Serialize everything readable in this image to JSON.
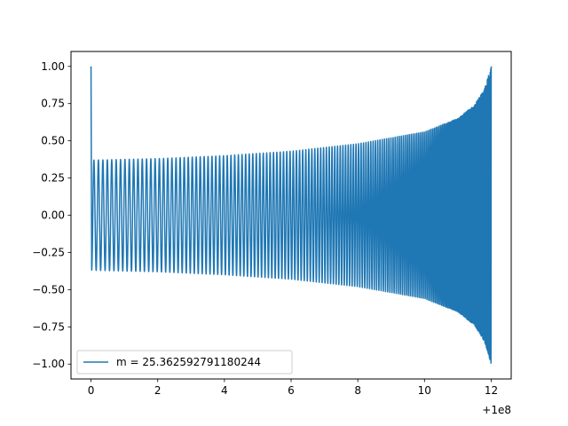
{
  "chart_data": {
    "type": "line",
    "title": "",
    "xlabel": "",
    "ylabel": "",
    "x_offset_label": "+1e8",
    "xlim": [
      -0.6,
      12.6
    ],
    "ylim": [
      -1.1,
      1.1
    ],
    "x_ticks": [
      0,
      2,
      4,
      6,
      8,
      10,
      12
    ],
    "x_tick_labels": [
      "0",
      "2",
      "4",
      "6",
      "8",
      "10",
      "12"
    ],
    "y_ticks": [
      -1.0,
      -0.75,
      -0.5,
      -0.25,
      0.0,
      0.25,
      0.5,
      0.75,
      1.0
    ],
    "y_tick_labels": [
      "−1.00",
      "−0.75",
      "−0.50",
      "−0.25",
      "0.00",
      "0.25",
      "0.50",
      "0.75",
      "1.00"
    ],
    "grid": false,
    "legend_position": "lower-left",
    "series": [
      {
        "name": "m = 25.362592791180244",
        "color": "#1f77b4",
        "x_start": 0,
        "x_end": 12,
        "initial_value": 1.0,
        "initial_dip": -0.34,
        "envelope_x": [
          0,
          2,
          4,
          6,
          8,
          10,
          11,
          11.5,
          11.8,
          12
        ],
        "envelope_amplitude": [
          0.37,
          0.38,
          0.4,
          0.43,
          0.48,
          0.56,
          0.65,
          0.74,
          0.85,
          1.0
        ]
      }
    ]
  }
}
